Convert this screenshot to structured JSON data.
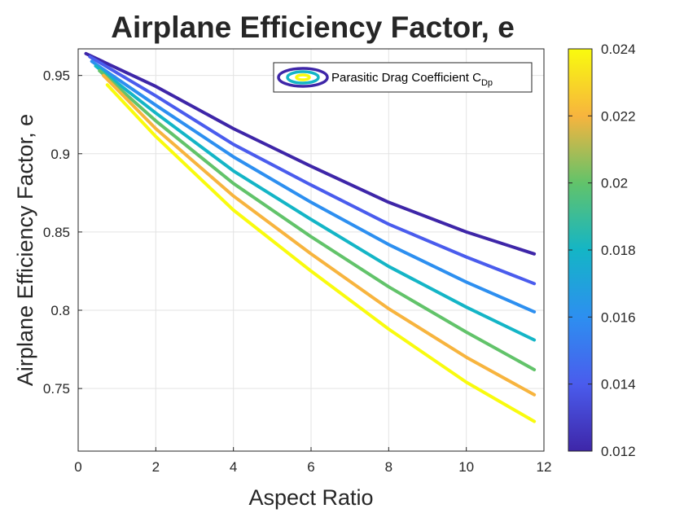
{
  "chart_data": {
    "type": "line",
    "title": "Airplane Efficiency Factor, e",
    "xlabel": "Aspect Ratio",
    "ylabel": "Airplane Efficiency Factor, e",
    "xlim": [
      0,
      12
    ],
    "ylim": [
      0.71,
      0.967
    ],
    "xticks": [
      0,
      2,
      4,
      6,
      8,
      10,
      12
    ],
    "xtick_labels": [
      "0",
      "2",
      "4",
      "6",
      "8",
      "10",
      "12"
    ],
    "yticks": [
      0.75,
      0.8,
      0.85,
      0.9,
      0.95
    ],
    "ytick_labels": [
      "0.75",
      "0.8",
      "0.85",
      "0.9",
      "0.95"
    ],
    "grid": true,
    "legend": {
      "text": "Parasitic Drag Coefficient C",
      "subscript": "Dp",
      "position": "top-right"
    },
    "colorbar": {
      "min": 0.012,
      "max": 0.024,
      "ticks": [
        0.012,
        0.014,
        0.016,
        0.018,
        0.02,
        0.022,
        0.024
      ],
      "tick_labels": [
        "0.012",
        "0.014",
        "0.016",
        "0.018",
        "0.02",
        "0.022",
        "0.024"
      ]
    },
    "series": [
      {
        "cdp": 0.012,
        "color": "#3e26a8",
        "x": [
          0.2,
          2,
          4,
          6,
          8,
          10,
          11.75
        ],
        "y": [
          0.964,
          0.943,
          0.916,
          0.892,
          0.869,
          0.85,
          0.836
        ]
      },
      {
        "cdp": 0.014,
        "color": "#4a5ced",
        "x": [
          0.3,
          2,
          4,
          6,
          8,
          10,
          11.75
        ],
        "y": [
          0.962,
          0.937,
          0.906,
          0.88,
          0.855,
          0.834,
          0.817
        ]
      },
      {
        "cdp": 0.016,
        "color": "#2d8ff0",
        "x": [
          0.35,
          2,
          4,
          6,
          8,
          10,
          11.75
        ],
        "y": [
          0.959,
          0.931,
          0.898,
          0.869,
          0.842,
          0.818,
          0.799
        ]
      },
      {
        "cdp": 0.018,
        "color": "#14b5c6",
        "x": [
          0.45,
          2,
          4,
          6,
          8,
          10,
          11.75
        ],
        "y": [
          0.956,
          0.926,
          0.889,
          0.858,
          0.828,
          0.802,
          0.781
        ]
      },
      {
        "cdp": 0.02,
        "color": "#62c36a",
        "x": [
          0.55,
          2,
          4,
          6,
          8,
          10,
          11.75
        ],
        "y": [
          0.953,
          0.921,
          0.881,
          0.847,
          0.815,
          0.786,
          0.762
        ]
      },
      {
        "cdp": 0.022,
        "color": "#f7b43e",
        "x": [
          0.65,
          2,
          4,
          6,
          8,
          10,
          11.75
        ],
        "y": [
          0.95,
          0.916,
          0.873,
          0.836,
          0.801,
          0.77,
          0.746
        ]
      },
      {
        "cdp": 0.024,
        "color": "#f9fb0e",
        "x": [
          0.75,
          2,
          4,
          6,
          8,
          10,
          11.75
        ],
        "y": [
          0.944,
          0.911,
          0.864,
          0.825,
          0.788,
          0.754,
          0.729
        ]
      }
    ]
  }
}
